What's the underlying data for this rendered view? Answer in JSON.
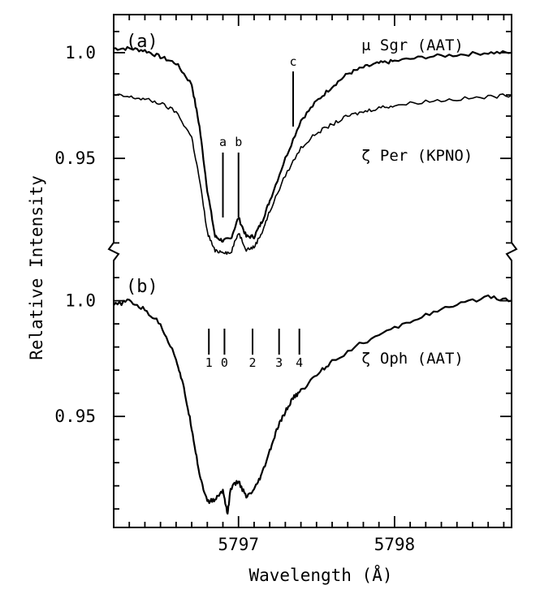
{
  "chart_data": {
    "type": "line",
    "title": "",
    "xlabel": "Wavelength (Å)",
    "ylabel": "Relative Intensity",
    "xlim": [
      5796.2,
      5798.75
    ],
    "x_ticks": [
      5797,
      5798
    ],
    "x_tick_labels": [
      "5797",
      "5798"
    ],
    "grid": false,
    "axis_break": "between panels (a) and (b) on both vertical axes",
    "panels": [
      {
        "label": "(a)",
        "ylim": [
          0.904,
          1.018
        ],
        "y_ticks": [
          1.0,
          0.95
        ],
        "y_tick_labels": [
          "1.0",
          "0.95"
        ],
        "series": [
          {
            "name": "μ Sgr (AAT)",
            "x": [
              5796.2,
              5796.3,
              5796.4,
              5796.5,
              5796.6,
              5796.7,
              5796.75,
              5796.8,
              5796.85,
              5796.9,
              5796.95,
              5797.0,
              5797.05,
              5797.1,
              5797.15,
              5797.2,
              5797.3,
              5797.4,
              5797.5,
              5797.6,
              5797.7,
              5797.8,
              5797.9,
              5798.0,
              5798.2,
              5798.4,
              5798.6,
              5798.75
            ],
            "values": [
              1.002,
              1.002,
              1.001,
              0.998,
              0.995,
              0.985,
              0.965,
              0.935,
              0.913,
              0.911,
              0.912,
              0.922,
              0.913,
              0.913,
              0.92,
              0.93,
              0.95,
              0.968,
              0.977,
              0.984,
              0.99,
              0.993,
              0.995,
              0.996,
              0.998,
              0.999,
              1.0,
              1.0
            ]
          },
          {
            "name": "ζ Per (KPNO)",
            "x": [
              5796.2,
              5796.3,
              5796.4,
              5796.5,
              5796.6,
              5796.7,
              5796.75,
              5796.8,
              5796.85,
              5796.9,
              5796.95,
              5797.0,
              5797.05,
              5797.1,
              5797.15,
              5797.2,
              5797.3,
              5797.4,
              5797.5,
              5797.6,
              5797.7,
              5797.8,
              5797.9,
              5798.0,
              5798.2,
              5798.4,
              5798.6,
              5798.75
            ],
            "values": [
              0.98,
              0.979,
              0.978,
              0.976,
              0.972,
              0.96,
              0.94,
              0.915,
              0.906,
              0.906,
              0.905,
              0.915,
              0.907,
              0.908,
              0.915,
              0.925,
              0.942,
              0.955,
              0.962,
              0.966,
              0.97,
              0.972,
              0.974,
              0.975,
              0.977,
              0.978,
              0.979,
              0.98
            ]
          }
        ],
        "feature_markers": [
          {
            "label": "a",
            "x": 5796.9
          },
          {
            "label": "b",
            "x": 5797.0
          },
          {
            "label": "c",
            "x": 5797.35
          }
        ]
      },
      {
        "label": "(b)",
        "ylim": [
          0.902,
          1.016
        ],
        "y_ticks": [
          1.0,
          0.95
        ],
        "y_tick_labels": [
          "1.0",
          "0.95"
        ],
        "series": [
          {
            "name": "ζ Oph (AAT)",
            "x": [
              5796.2,
              5796.3,
              5796.4,
              5796.5,
              5796.6,
              5796.65,
              5796.7,
              5796.75,
              5796.8,
              5796.85,
              5796.9,
              5796.93,
              5796.95,
              5797.0,
              5797.05,
              5797.1,
              5797.15,
              5797.2,
              5797.25,
              5797.3,
              5797.35,
              5797.4,
              5797.5,
              5797.6,
              5797.8,
              5798.0,
              5798.2,
              5798.4,
              5798.6,
              5798.75
            ],
            "values": [
              0.998,
              1.0,
              0.996,
              0.99,
              0.975,
              0.962,
              0.945,
              0.925,
              0.913,
              0.914,
              0.918,
              0.908,
              0.919,
              0.922,
              0.915,
              0.918,
              0.925,
              0.935,
              0.945,
              0.952,
              0.958,
              0.961,
              0.968,
              0.974,
              0.982,
              0.988,
              0.994,
              0.998,
              1.002,
              1.0
            ]
          }
        ],
        "feature_markers": [
          {
            "label": "1",
            "x": 5796.81
          },
          {
            "label": "0",
            "x": 5796.91
          },
          {
            "label": "2",
            "x": 5797.09
          },
          {
            "label": "3",
            "x": 5797.26
          },
          {
            "label": "4",
            "x": 5797.39
          }
        ]
      }
    ]
  }
}
